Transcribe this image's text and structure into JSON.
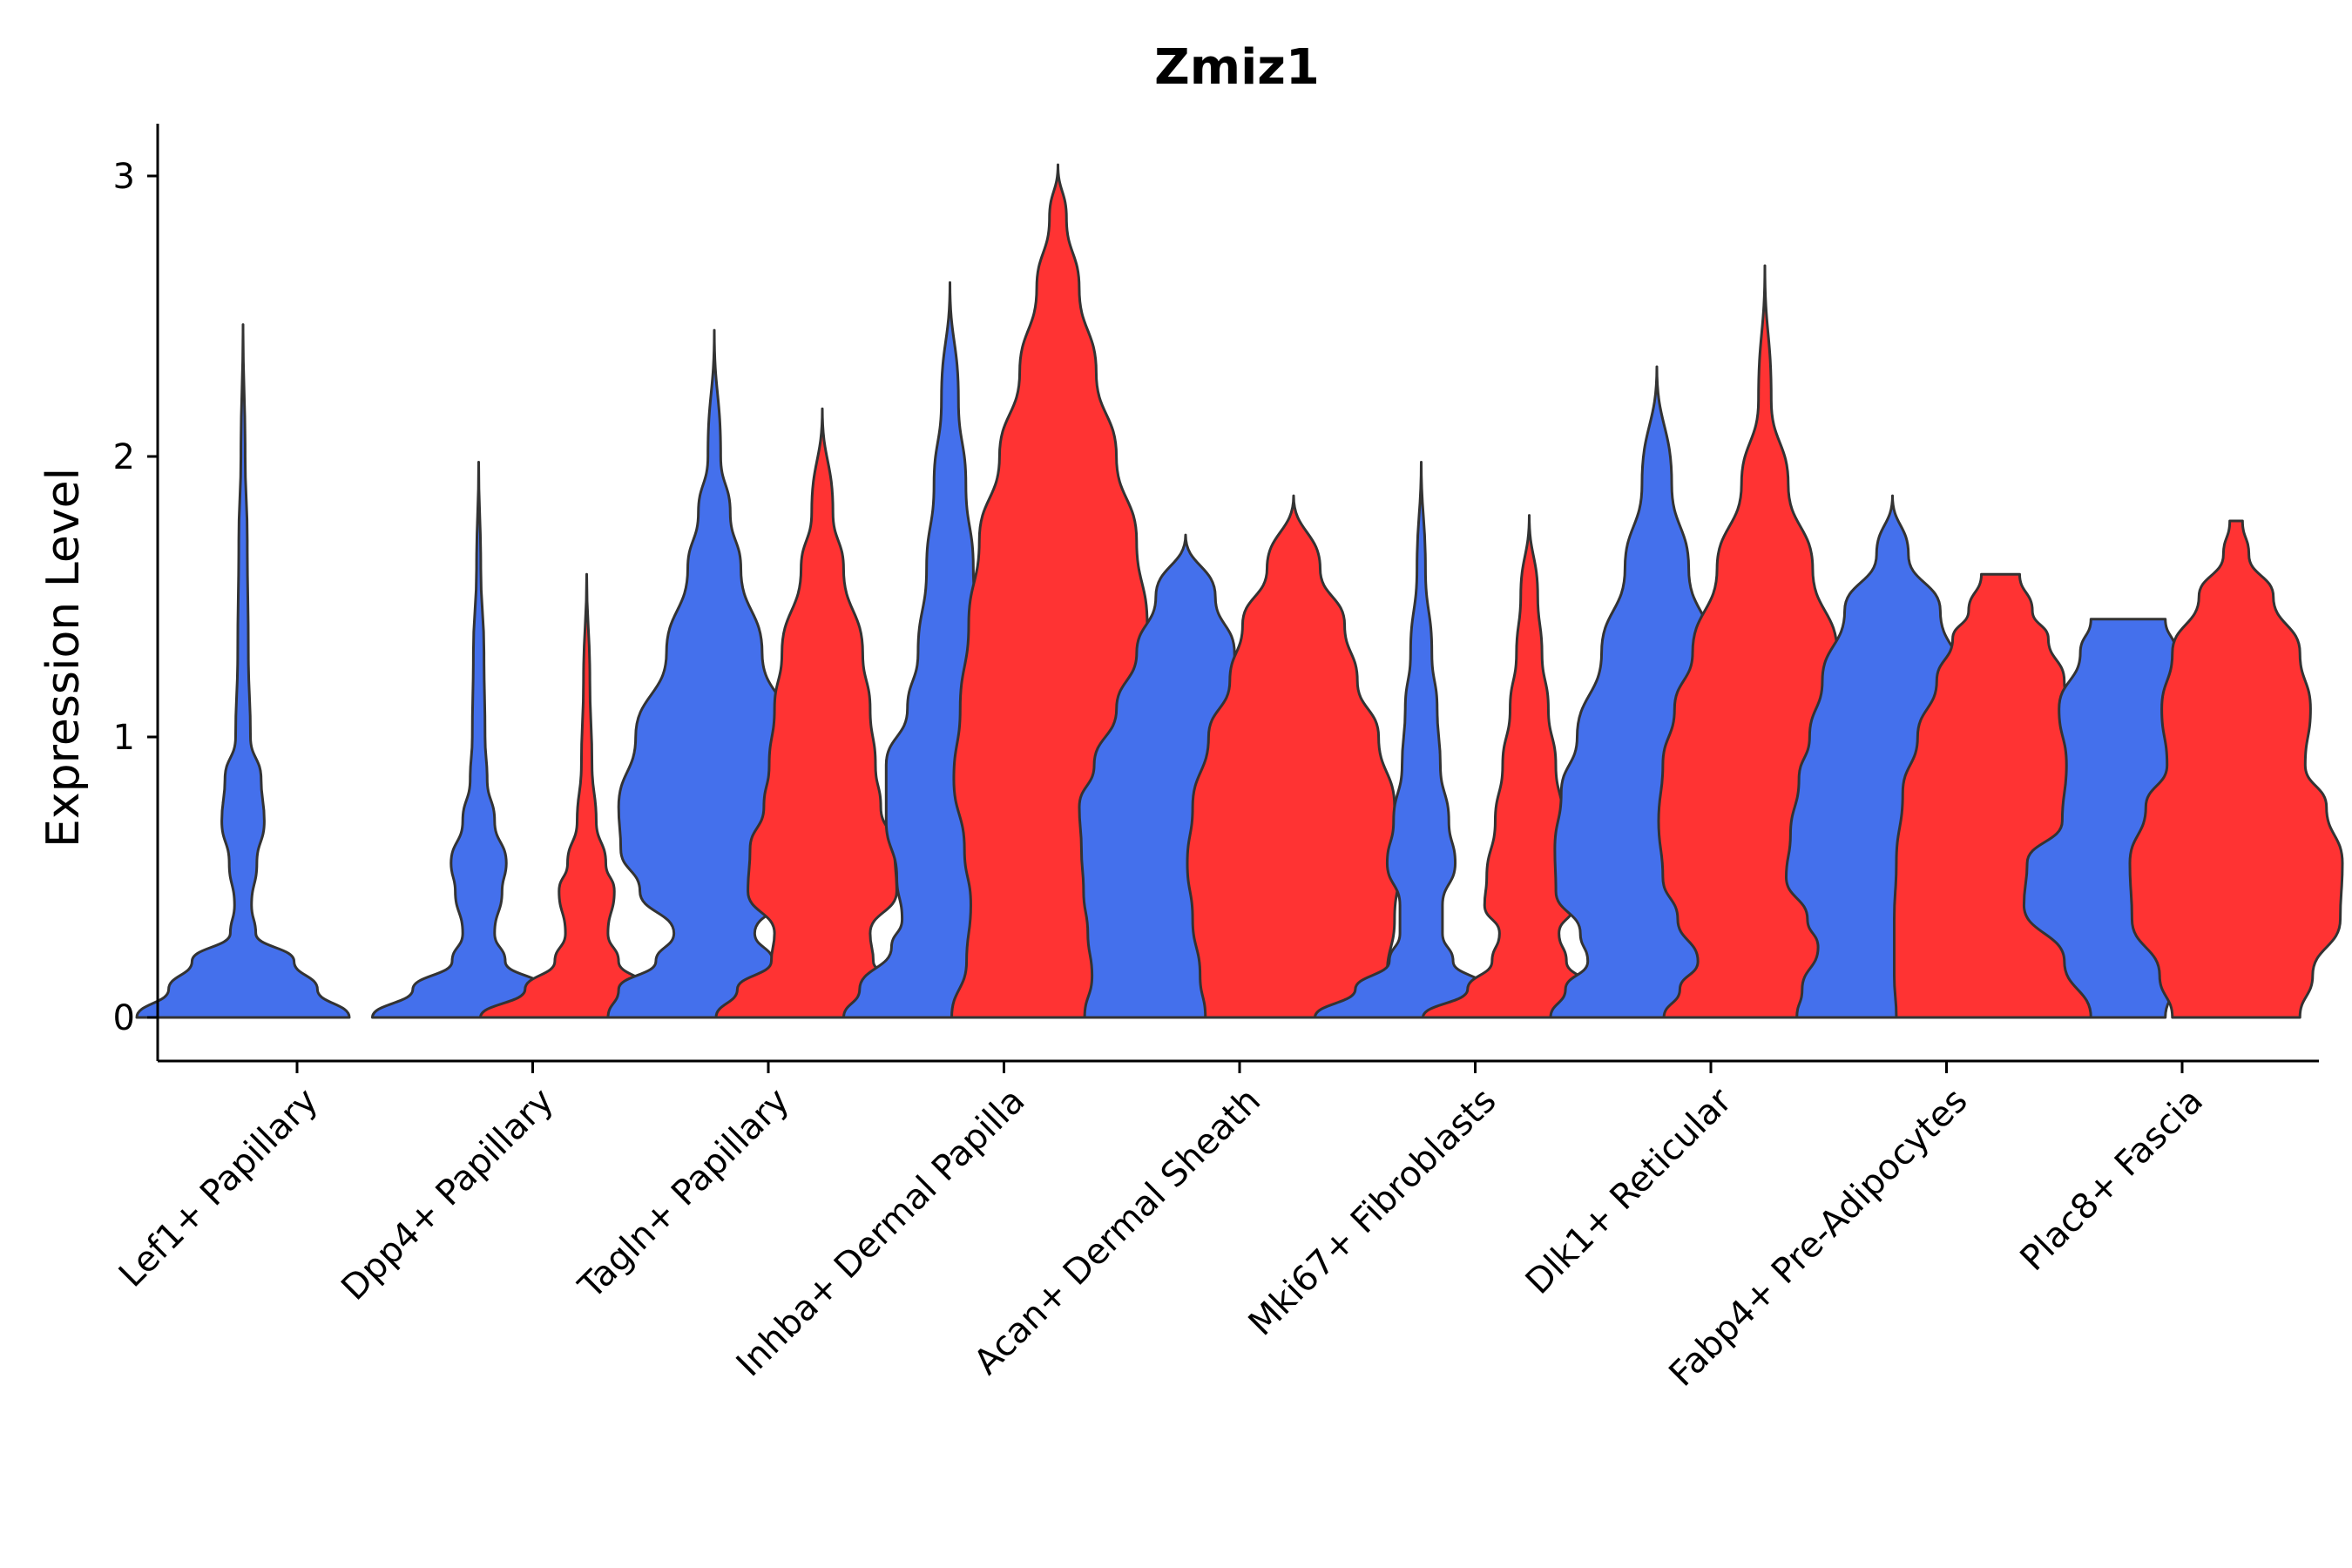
{
  "chart_data": {
    "type": "violin",
    "title": "Zmiz1",
    "xlabel": "",
    "ylabel": "Expression Level",
    "ylim": [
      -0.15,
      3.2
    ],
    "yticks": [
      0,
      1,
      2,
      3
    ],
    "colors": {
      "group1": "#4470EC",
      "group2": "#FF3333",
      "outline": "#333333"
    },
    "categories": [
      "Lef1+ Papillary",
      "Dpp4+ Papillary",
      "Tagln+ Papillary",
      "Inhba+ Dermal Papilla",
      "Acan+ Dermal Sheath",
      "Mki67+ Fibroblasts",
      "Dlk1+ Reticular",
      "Fabp4+ Pre-Adipocytes",
      "Plac8+ Fascia"
    ],
    "violins": [
      {
        "category": 0,
        "group": 1,
        "min": 0,
        "max": 2.47,
        "profile": [
          [
            0,
            1
          ],
          [
            0.1,
            0.7
          ],
          [
            0.2,
            0.48
          ],
          [
            0.3,
            0.12
          ],
          [
            0.4,
            0.08
          ],
          [
            0.55,
            0.13
          ],
          [
            0.7,
            0.2
          ],
          [
            0.85,
            0.17
          ],
          [
            1.0,
            0.07
          ],
          [
            1.3,
            0.05
          ],
          [
            1.7,
            0.04
          ],
          [
            2.0,
            0.02
          ],
          [
            2.47,
            0
          ]
        ]
      },
      {
        "category": 1,
        "group": 1,
        "min": 0,
        "max": 1.98,
        "profile": [
          [
            0,
            1
          ],
          [
            0.1,
            0.62
          ],
          [
            0.2,
            0.25
          ],
          [
            0.3,
            0.15
          ],
          [
            0.45,
            0.22
          ],
          [
            0.55,
            0.26
          ],
          [
            0.7,
            0.15
          ],
          [
            0.85,
            0.08
          ],
          [
            1.0,
            0.06
          ],
          [
            1.3,
            0.05
          ],
          [
            1.6,
            0.02
          ],
          [
            1.98,
            0
          ]
        ]
      },
      {
        "category": 1,
        "group": 2,
        "min": 0,
        "max": 1.58,
        "profile": [
          [
            0,
            1
          ],
          [
            0.1,
            0.58
          ],
          [
            0.2,
            0.3
          ],
          [
            0.3,
            0.2
          ],
          [
            0.45,
            0.26
          ],
          [
            0.55,
            0.18
          ],
          [
            0.7,
            0.09
          ],
          [
            0.9,
            0.05
          ],
          [
            1.2,
            0.03
          ],
          [
            1.58,
            0
          ]
        ]
      },
      {
        "category": 2,
        "group": 1,
        "min": 0,
        "max": 2.45,
        "profile": [
          [
            0,
            1
          ],
          [
            0.1,
            0.9
          ],
          [
            0.2,
            0.55
          ],
          [
            0.3,
            0.38
          ],
          [
            0.45,
            0.7
          ],
          [
            0.6,
            0.88
          ],
          [
            0.75,
            0.9
          ],
          [
            1.0,
            0.74
          ],
          [
            1.3,
            0.45
          ],
          [
            1.6,
            0.25
          ],
          [
            1.8,
            0.15
          ],
          [
            2.0,
            0.06
          ],
          [
            2.45,
            0
          ]
        ]
      },
      {
        "category": 2,
        "group": 2,
        "min": 0,
        "max": 2.17,
        "profile": [
          [
            0,
            1
          ],
          [
            0.1,
            0.8
          ],
          [
            0.2,
            0.48
          ],
          [
            0.3,
            0.45
          ],
          [
            0.45,
            0.7
          ],
          [
            0.6,
            0.68
          ],
          [
            0.75,
            0.55
          ],
          [
            0.9,
            0.5
          ],
          [
            1.1,
            0.45
          ],
          [
            1.3,
            0.38
          ],
          [
            1.6,
            0.2
          ],
          [
            1.8,
            0.1
          ],
          [
            2.17,
            0
          ]
        ]
      },
      {
        "category": 3,
        "group": 1,
        "min": 0,
        "max": 2.62,
        "profile": [
          [
            0,
            1
          ],
          [
            0.1,
            0.85
          ],
          [
            0.25,
            0.55
          ],
          [
            0.35,
            0.45
          ],
          [
            0.5,
            0.5
          ],
          [
            0.7,
            0.6
          ],
          [
            0.9,
            0.6
          ],
          [
            1.1,
            0.4
          ],
          [
            1.3,
            0.3
          ],
          [
            1.6,
            0.22
          ],
          [
            1.9,
            0.15
          ],
          [
            2.2,
            0.08
          ],
          [
            2.62,
            0
          ]
        ]
      },
      {
        "category": 3,
        "group": 2,
        "min": 0,
        "max": 3.04,
        "profile": [
          [
            0,
            1
          ],
          [
            0.2,
            0.86
          ],
          [
            0.4,
            0.82
          ],
          [
            0.6,
            0.88
          ],
          [
            0.85,
            0.98
          ],
          [
            1.1,
            0.92
          ],
          [
            1.4,
            0.84
          ],
          [
            1.7,
            0.74
          ],
          [
            2.0,
            0.55
          ],
          [
            2.3,
            0.36
          ],
          [
            2.6,
            0.2
          ],
          [
            2.85,
            0.08
          ],
          [
            3.04,
            0
          ]
        ]
      },
      {
        "category": 4,
        "group": 1,
        "min": 0,
        "max": 1.72,
        "profile": [
          [
            0,
            0.95
          ],
          [
            0.15,
            0.88
          ],
          [
            0.3,
            0.92
          ],
          [
            0.45,
            0.96
          ],
          [
            0.6,
            0.98
          ],
          [
            0.75,
            1.0
          ],
          [
            0.9,
            0.86
          ],
          [
            1.1,
            0.65
          ],
          [
            1.3,
            0.46
          ],
          [
            1.5,
            0.28
          ],
          [
            1.72,
            0
          ]
        ]
      },
      {
        "category": 4,
        "group": 2,
        "min": 0,
        "max": 1.86,
        "profile": [
          [
            0,
            0.83
          ],
          [
            0.15,
            0.88
          ],
          [
            0.35,
            0.95
          ],
          [
            0.55,
            1.0
          ],
          [
            0.75,
            0.95
          ],
          [
            1.0,
            0.8
          ],
          [
            1.2,
            0.6
          ],
          [
            1.4,
            0.48
          ],
          [
            1.6,
            0.25
          ],
          [
            1.86,
            0
          ]
        ]
      },
      {
        "category": 5,
        "group": 1,
        "min": 0,
        "max": 1.98,
        "profile": [
          [
            0,
            1
          ],
          [
            0.1,
            0.62
          ],
          [
            0.2,
            0.3
          ],
          [
            0.3,
            0.2
          ],
          [
            0.4,
            0.2
          ],
          [
            0.55,
            0.32
          ],
          [
            0.7,
            0.26
          ],
          [
            0.9,
            0.18
          ],
          [
            1.1,
            0.15
          ],
          [
            1.3,
            0.1
          ],
          [
            1.6,
            0.04
          ],
          [
            1.98,
            0
          ]
        ]
      },
      {
        "category": 5,
        "group": 2,
        "min": 0,
        "max": 1.79,
        "profile": [
          [
            0,
            1
          ],
          [
            0.1,
            0.58
          ],
          [
            0.2,
            0.35
          ],
          [
            0.3,
            0.28
          ],
          [
            0.4,
            0.42
          ],
          [
            0.5,
            0.4
          ],
          [
            0.7,
            0.32
          ],
          [
            0.9,
            0.25
          ],
          [
            1.1,
            0.18
          ],
          [
            1.3,
            0.12
          ],
          [
            1.5,
            0.08
          ],
          [
            1.79,
            0
          ]
        ]
      },
      {
        "category": 6,
        "group": 1,
        "min": 0,
        "max": 2.32,
        "profile": [
          [
            0,
            1
          ],
          [
            0.1,
            0.86
          ],
          [
            0.2,
            0.65
          ],
          [
            0.3,
            0.72
          ],
          [
            0.45,
            0.95
          ],
          [
            0.6,
            0.96
          ],
          [
            0.8,
            0.9
          ],
          [
            1.0,
            0.75
          ],
          [
            1.3,
            0.52
          ],
          [
            1.6,
            0.3
          ],
          [
            1.9,
            0.14
          ],
          [
            2.32,
            0
          ]
        ]
      },
      {
        "category": 6,
        "group": 2,
        "min": 0,
        "max": 2.68,
        "profile": [
          [
            0,
            0.95
          ],
          [
            0.1,
            0.8
          ],
          [
            0.2,
            0.63
          ],
          [
            0.35,
            0.82
          ],
          [
            0.5,
            0.96
          ],
          [
            0.7,
            1.0
          ],
          [
            0.9,
            0.96
          ],
          [
            1.1,
            0.85
          ],
          [
            1.3,
            0.68
          ],
          [
            1.6,
            0.45
          ],
          [
            1.9,
            0.22
          ],
          [
            2.2,
            0.06
          ],
          [
            2.68,
            0
          ]
        ]
      },
      {
        "category": 7,
        "group": 1,
        "min": 0,
        "max": 1.86,
        "profile": [
          [
            0,
            0.9
          ],
          [
            0.1,
            0.85
          ],
          [
            0.25,
            0.7
          ],
          [
            0.35,
            0.8
          ],
          [
            0.5,
            1.0
          ],
          [
            0.65,
            0.96
          ],
          [
            0.85,
            0.88
          ],
          [
            1.0,
            0.78
          ],
          [
            1.2,
            0.66
          ],
          [
            1.45,
            0.45
          ],
          [
            1.65,
            0.15
          ],
          [
            1.86,
            0
          ]
        ]
      },
      {
        "category": 7,
        "group": 2,
        "min": 0,
        "max": 1.58,
        "profile": [
          [
            0,
            0.98
          ],
          [
            0.15,
            1.0
          ],
          [
            0.35,
            1.0
          ],
          [
            0.55,
            0.98
          ],
          [
            0.8,
            0.92
          ],
          [
            1.0,
            0.78
          ],
          [
            1.2,
            0.6
          ],
          [
            1.35,
            0.45
          ],
          [
            1.45,
            0.3
          ],
          [
            1.58,
            0.18
          ]
        ]
      },
      {
        "category": 8,
        "group": 1,
        "min": 0,
        "max": 1.42,
        "profile": [
          [
            0,
            0.35
          ],
          [
            0.2,
            0.6
          ],
          [
            0.4,
            0.98
          ],
          [
            0.55,
            0.95
          ],
          [
            0.7,
            0.62
          ],
          [
            0.9,
            0.58
          ],
          [
            1.1,
            0.65
          ],
          [
            1.3,
            0.45
          ],
          [
            1.42,
            0.35
          ]
        ]
      },
      {
        "category": 8,
        "group": 2,
        "min": 0,
        "max": 1.77,
        "profile": [
          [
            0,
            0.6
          ],
          [
            0.15,
            0.72
          ],
          [
            0.35,
            0.98
          ],
          [
            0.55,
            1.0
          ],
          [
            0.75,
            0.85
          ],
          [
            0.9,
            0.65
          ],
          [
            1.1,
            0.7
          ],
          [
            1.3,
            0.6
          ],
          [
            1.5,
            0.35
          ],
          [
            1.65,
            0.12
          ],
          [
            1.77,
            0.06
          ]
        ]
      }
    ]
  }
}
